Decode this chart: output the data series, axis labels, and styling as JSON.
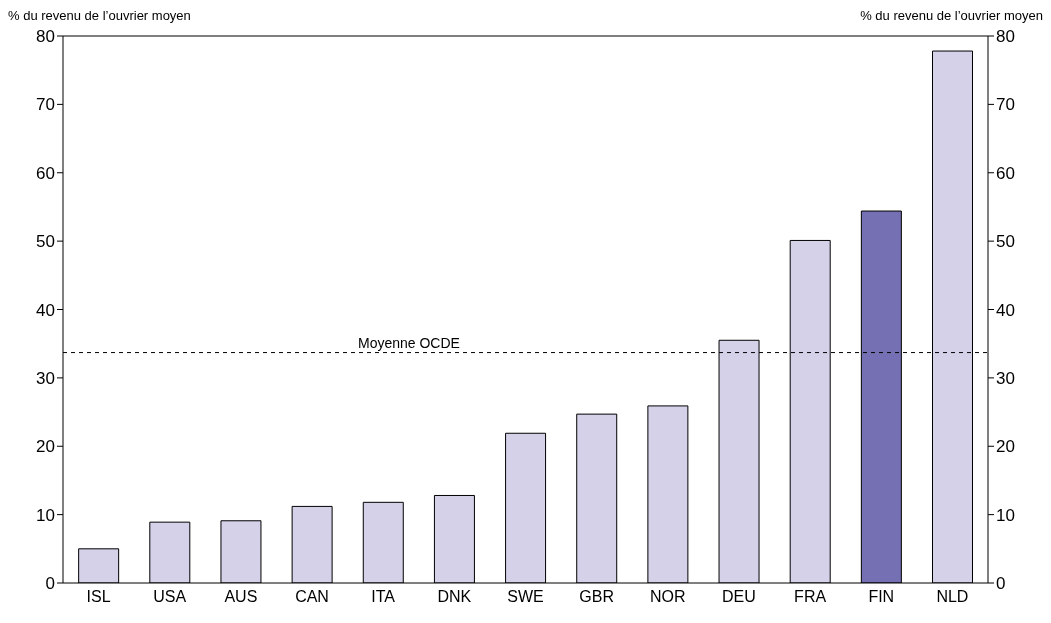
{
  "chart_data": {
    "type": "bar",
    "ylabel": "% du revenu de l’ouvrier moyen",
    "y2label": "% du revenu de l’ouvrier moyen",
    "categories": [
      "ISL",
      "USA",
      "AUS",
      "CAN",
      "ITA",
      "DNK",
      "SWE",
      "GBR",
      "NOR",
      "DEU",
      "FRA",
      "FIN",
      "NLD"
    ],
    "values": [
      5.0,
      8.9,
      9.1,
      11.2,
      11.8,
      12.8,
      21.9,
      24.7,
      25.9,
      35.5,
      50.1,
      54.4,
      77.8
    ],
    "colors": [
      "#d4d1e9",
      "#d4d1e9",
      "#d4d1e9",
      "#d4d1e9",
      "#d4d1e9",
      "#d4d1e9",
      "#d4d1e9",
      "#d4d1e9",
      "#d4d1e9",
      "#d4d1e9",
      "#d4d1e9",
      "#7570b3",
      "#d4d1e9"
    ],
    "ylim": [
      0,
      80
    ],
    "yticks": [
      0,
      10,
      20,
      30,
      40,
      50,
      60,
      70,
      80
    ],
    "y2lim": [
      0,
      80
    ],
    "y2ticks": [
      0,
      10,
      20,
      30,
      40,
      50,
      60,
      70,
      80
    ],
    "ref_lines": [
      {
        "axis": "y",
        "value": 33.7,
        "label": "Moyenne OCDE",
        "color": "#000000",
        "line_style": "dashed"
      }
    ],
    "grid": false,
    "legend": false
  }
}
